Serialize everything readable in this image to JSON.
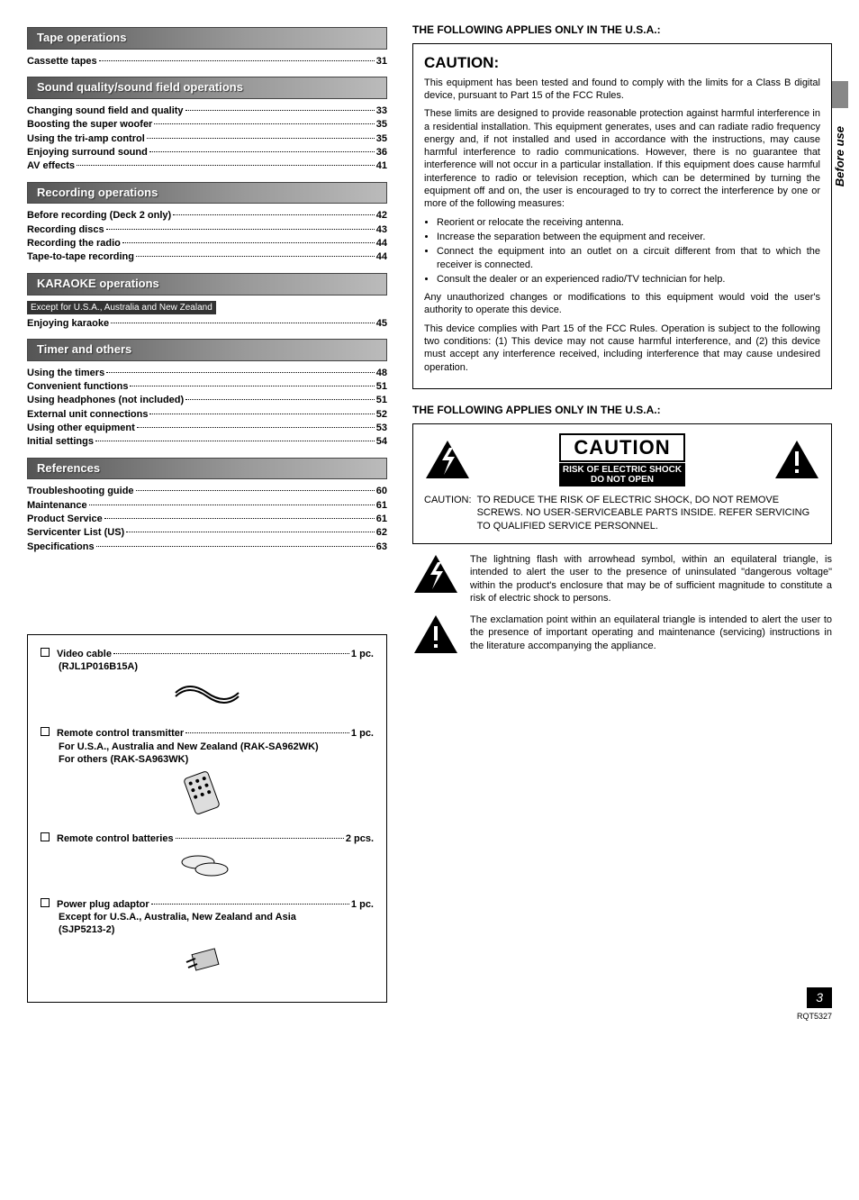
{
  "left": {
    "sections": [
      {
        "title": "Tape operations",
        "items": [
          {
            "label": "Cassette tapes",
            "page": "31"
          }
        ]
      },
      {
        "title": "Sound quality/sound field operations",
        "items": [
          {
            "label": "Changing sound field and quality",
            "page": "33"
          },
          {
            "label": "Boosting the super woofer",
            "page": "35"
          },
          {
            "label": "Using the tri-amp control",
            "page": "35"
          },
          {
            "label": "Enjoying surround sound",
            "page": "36"
          },
          {
            "label": "AV effects",
            "page": "41"
          }
        ]
      },
      {
        "title": "Recording operations",
        "items": [
          {
            "label": "Before recording (Deck 2 only)",
            "page": "42"
          },
          {
            "label": "Recording discs",
            "page": "43"
          },
          {
            "label": "Recording the radio",
            "page": "44"
          },
          {
            "label": "Tape-to-tape recording",
            "page": "44"
          }
        ]
      },
      {
        "title": "KARAOKE operations",
        "note": "Except for U.S.A., Australia and New Zealand",
        "items": [
          {
            "label": "Enjoying karaoke",
            "page": "45"
          }
        ]
      },
      {
        "title": "Timer and others",
        "items": [
          {
            "label": "Using the timers",
            "page": "48"
          },
          {
            "label": "Convenient functions",
            "page": "51"
          },
          {
            "label": "Using headphones (not included)",
            "page": "51"
          },
          {
            "label": "External unit connections",
            "page": "52"
          },
          {
            "label": "Using other equipment",
            "page": "53"
          },
          {
            "label": "Initial settings",
            "page": "54"
          }
        ]
      },
      {
        "title": "References",
        "items": [
          {
            "label": "Troubleshooting guide",
            "page": "60"
          },
          {
            "label": "Maintenance",
            "page": "61"
          },
          {
            "label": "Product Service",
            "page": "61"
          },
          {
            "label": "Servicenter List (US)",
            "page": "62"
          },
          {
            "label": "Specifications",
            "page": "63"
          }
        ]
      }
    ],
    "accessories": [
      {
        "label": "Video cable",
        "qty": "1 pc.",
        "sub": "(RJL1P016B15A)",
        "icon": "cable"
      },
      {
        "label": "Remote control transmitter",
        "qty": "1 pc.",
        "sub": "For U.S.A., Australia and New Zealand (RAK-SA962WK)\nFor others (RAK-SA963WK)",
        "icon": "remote"
      },
      {
        "label": "Remote control batteries",
        "qty": "2 pcs.",
        "sub": "",
        "icon": "batteries"
      },
      {
        "label": "Power plug adaptor",
        "qty": "1 pc.",
        "sub": "Except for U.S.A., Australia, New Zealand and Asia\n(SJP5213-2)",
        "icon": "plug"
      }
    ]
  },
  "right": {
    "applies_heading": "THE FOLLOWING APPLIES ONLY IN THE U.S.A.:",
    "caution": {
      "title": "CAUTION:",
      "p1": "This equipment has been tested and found to comply with the limits for a Class B digital device, pursuant to Part 15 of the FCC Rules.",
      "p2": "These limits are designed to provide reasonable protection against harmful interference in a residential installation. This equipment generates, uses and can radiate radio frequency energy and, if not installed and used in accordance with the instructions, may cause harmful interference to radio communications. However, there is no guarantee that interference will not occur in a particular installation. If this equipment does cause harmful interference to radio or television reception, which can be determined by turning the equipment off and on, the user is encouraged to try to correct the interference by one or more of the following measures:",
      "bullets": [
        "Reorient or relocate the receiving antenna.",
        "Increase the separation between the equipment and receiver.",
        "Connect the equipment into an outlet on a circuit different from that to which the receiver is connected.",
        "Consult the dealer or an experienced radio/TV technician for help."
      ],
      "p3": "Any unauthorized changes or modifications to this equipment would void the user's authority to operate this device.",
      "p4": "This device complies with Part 15 of the FCC Rules. Operation is subject to the following two conditions: (1) This device may not cause harmful interference, and (2) this device must accept any interference received, including interference that may cause undesired operation."
    },
    "shock": {
      "big_word": "CAUTION",
      "sub1": "RISK OF ELECTRIC SHOCK",
      "sub2": "DO NOT OPEN",
      "caution_label": "CAUTION:",
      "caution_text": "TO REDUCE THE RISK OF ELECTRIC SHOCK, DO NOT REMOVE SCREWS. NO USER-SERVICEABLE PARTS INSIDE. REFER SERVICING TO QUALIFIED SERVICE PERSONNEL."
    },
    "symbol_bolt": "The lightning flash with arrowhead symbol, within an equilateral triangle, is intended to alert the user to the presence of uninsulated \"dangerous voltage\" within the product's enclosure that may be of sufficient magnitude to constitute a risk of electric shock to persons.",
    "symbol_excl": "The exclamation point within an equilateral triangle is intended to alert the user to the presence of important operating and maintenance (servicing) instructions in the literature accompanying the appliance.",
    "side_tab": "Before use",
    "page_number": "3",
    "page_code": "RQT5327"
  }
}
